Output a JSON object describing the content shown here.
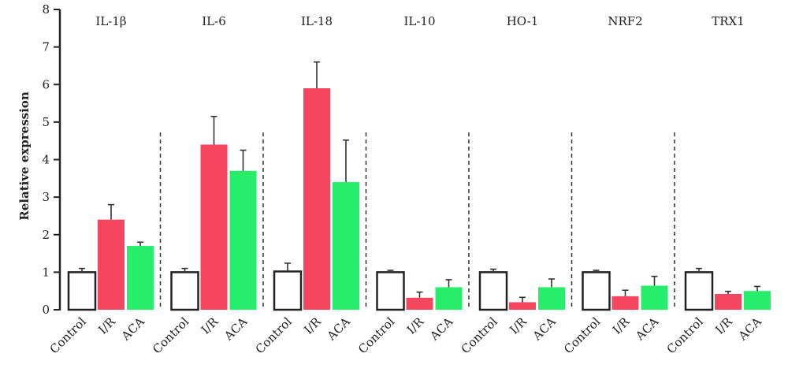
{
  "chart_data": {
    "type": "bar",
    "ylabel": "Relative expression",
    "ylim": [
      0,
      8
    ],
    "yticks": [
      "0",
      "1",
      "2",
      "3",
      "4",
      "5",
      "6",
      "7",
      "8"
    ],
    "categories": [
      "Control",
      "I/R",
      "ACA"
    ],
    "series_colors": {
      "Control": "#ffffff",
      "I/R": "#f5465f",
      "ACA": "#26ee6a"
    },
    "groups": [
      {
        "label": "IL-1β",
        "values": [
          1.0,
          2.4,
          1.7
        ],
        "errors": [
          0.1,
          0.4,
          0.1
        ]
      },
      {
        "label": "IL-6",
        "values": [
          1.0,
          4.4,
          3.7
        ],
        "errors": [
          0.1,
          0.75,
          0.55
        ]
      },
      {
        "label": "IL-18",
        "values": [
          1.02,
          5.9,
          3.4
        ],
        "errors": [
          0.22,
          0.7,
          1.12
        ]
      },
      {
        "label": "IL-10",
        "values": [
          1.0,
          0.32,
          0.6
        ],
        "errors": [
          0.05,
          0.15,
          0.2
        ]
      },
      {
        "label": "HO-1",
        "values": [
          1.0,
          0.2,
          0.6
        ],
        "errors": [
          0.08,
          0.13,
          0.22
        ]
      },
      {
        "label": "NRF2",
        "values": [
          1.0,
          0.36,
          0.64
        ],
        "errors": [
          0.05,
          0.16,
          0.25
        ]
      },
      {
        "label": "TRX1",
        "values": [
          1.0,
          0.42,
          0.5
        ],
        "errors": [
          0.1,
          0.07,
          0.12
        ]
      }
    ],
    "separators": "dashed"
  }
}
